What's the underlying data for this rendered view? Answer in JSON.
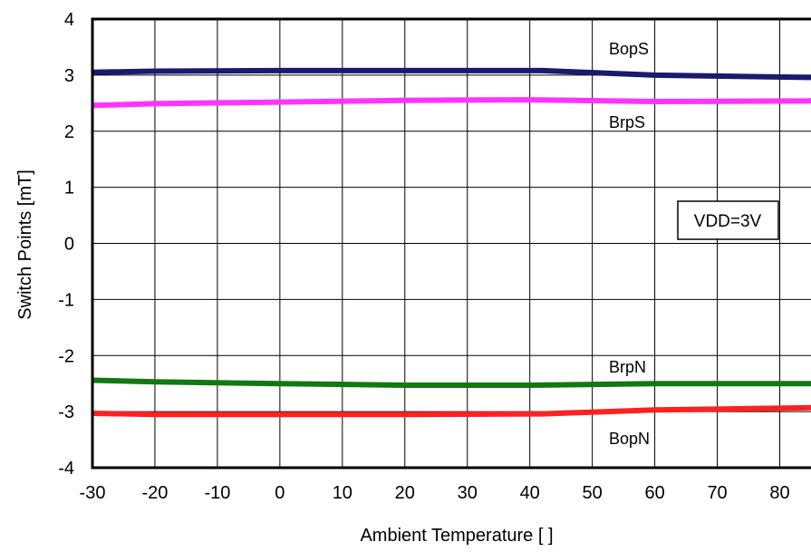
{
  "chart_data": {
    "type": "line",
    "title": "",
    "xlabel": "Ambient Temperature [     ]",
    "ylabel": "Switch Points [mT]",
    "xlim": [
      -30,
      85
    ],
    "ylim": [
      -4,
      4
    ],
    "x_ticks": [
      -30,
      -20,
      -10,
      0,
      10,
      20,
      30,
      40,
      50,
      60,
      70,
      80
    ],
    "x_tick_labels": [
      "-30",
      "-20",
      "-10",
      "0",
      "10",
      "20",
      "30",
      "40",
      "50",
      "60",
      "70",
      "80"
    ],
    "y_ticks": [
      -4,
      -3,
      -2,
      -1,
      0,
      1,
      2,
      3,
      4
    ],
    "y_tick_labels": [
      "-4",
      "-3",
      "-2",
      "-1",
      "0",
      "1",
      "2",
      "3",
      "4"
    ],
    "grid": true,
    "legend": "none",
    "annotation": "VDD=3V",
    "series": [
      {
        "name": "BopS",
        "color": "#1a1a6e",
        "x": [
          -30,
          -20,
          0,
          25,
          42,
          60,
          85
        ],
        "y": [
          3.05,
          3.07,
          3.08,
          3.08,
          3.08,
          3.0,
          2.96
        ]
      },
      {
        "name": "BrpS",
        "color": "#ff33ff",
        "x": [
          -30,
          -20,
          0,
          20,
          40,
          60,
          85
        ],
        "y": [
          2.46,
          2.49,
          2.52,
          2.55,
          2.56,
          2.53,
          2.54
        ]
      },
      {
        "name": "BrpN",
        "color": "#127812",
        "x": [
          -30,
          -20,
          0,
          20,
          40,
          60,
          85
        ],
        "y": [
          -2.44,
          -2.47,
          -2.5,
          -2.53,
          -2.53,
          -2.5,
          -2.5
        ]
      },
      {
        "name": "BopN",
        "color": "#ff2020",
        "x": [
          -30,
          -20,
          0,
          20,
          42,
          60,
          85
        ],
        "y": [
          -3.03,
          -3.05,
          -3.05,
          -3.05,
          -3.04,
          -2.97,
          -2.93
        ]
      }
    ]
  }
}
